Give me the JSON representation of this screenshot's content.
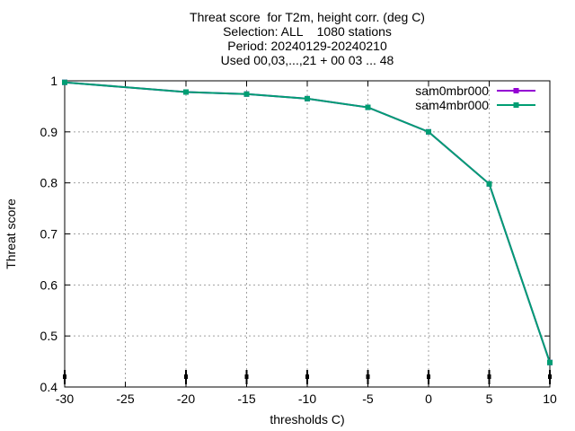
{
  "chart_data": {
    "type": "line",
    "title_lines": [
      "Threat score  for T2m, height corr. (deg C)",
      "Selection: ALL    1080 stations",
      "Period: 20240129-20240210",
      "Used 00,03,...,21 + 00 03 ... 48"
    ],
    "xlabel": "thresholds C)",
    "ylabel": "Threat score",
    "x": [
      -30,
      -20,
      -15,
      -10,
      -5,
      0,
      5,
      10
    ],
    "xlim": [
      -30,
      10
    ],
    "ylim": [
      0.4,
      1.0
    ],
    "x_ticks": [
      -30,
      -25,
      -20,
      -15,
      -10,
      -5,
      0,
      5,
      10
    ],
    "y_ticks": [
      0.4,
      0.5,
      0.6,
      0.7,
      0.8,
      0.9,
      1.0
    ],
    "y_tick_labels": [
      "0.4",
      "0.5",
      "0.6",
      "0.7",
      "0.8",
      "0.9",
      "1"
    ],
    "grid": true,
    "legend_position": "top-right",
    "series": [
      {
        "name": "sam0mbr000",
        "color": "#9400d3",
        "marker": "filled-square",
        "values": [
          0.997,
          0.978,
          0.974,
          0.965,
          0.948,
          0.9,
          0.798,
          0.448
        ]
      },
      {
        "name": "sam4mbr000",
        "color": "#009e73",
        "marker": "filled-square",
        "values": [
          0.997,
          0.978,
          0.974,
          0.965,
          0.948,
          0.9,
          0.798,
          0.448
        ]
      }
    ],
    "sample_markers": {
      "x": [
        -30,
        -20,
        -15,
        -10,
        -5,
        0,
        5,
        10
      ],
      "color": "#000000"
    }
  }
}
